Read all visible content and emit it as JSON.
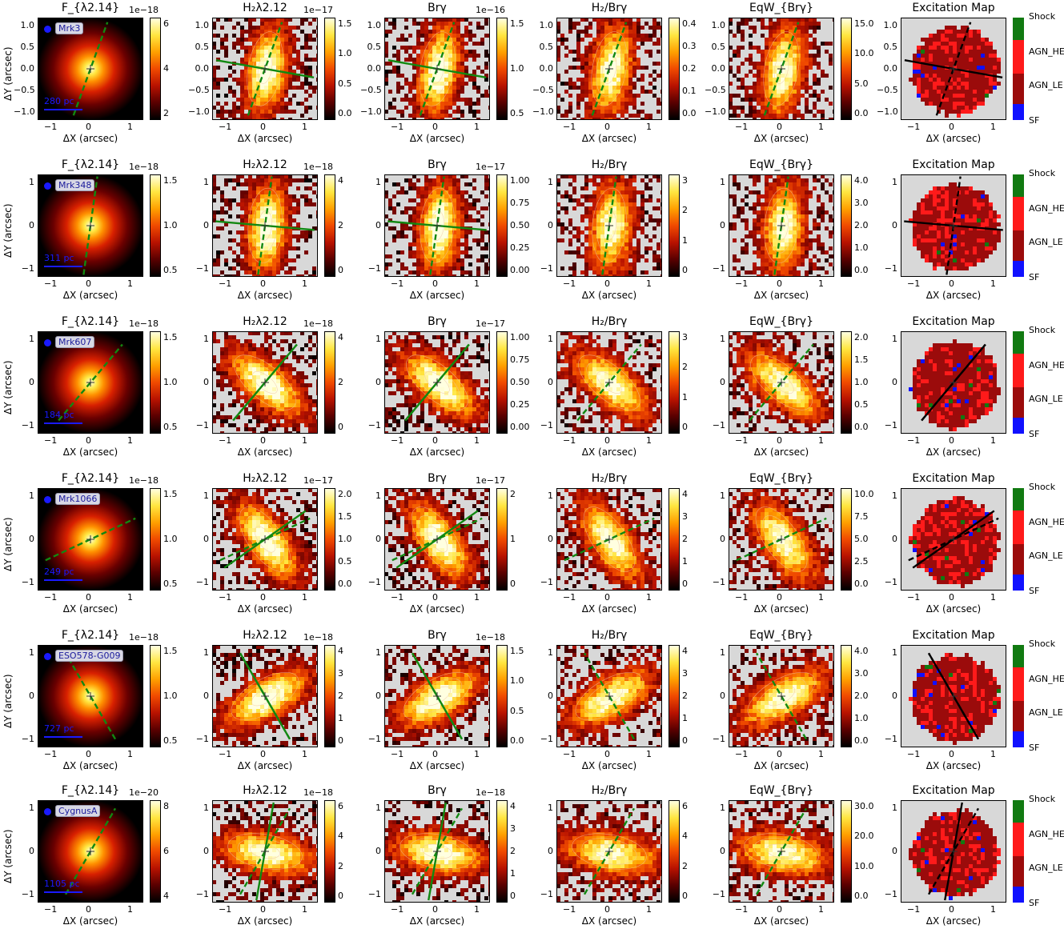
{
  "column_titles": [
    "F_{λ2.14}",
    "H₂λ2.12",
    "Brγ",
    "H₂/Brγ",
    "EqW_{Brγ}",
    "Excitation Map"
  ],
  "axis": {
    "xlabel": "ΔX (arcsec)",
    "ylabel": "ΔY (arcsec)"
  },
  "excitation_categories": [
    {
      "label": "Shock",
      "color": "#117a11"
    },
    {
      "label": "AGN_HE",
      "color": "#ff1a1a"
    },
    {
      "label": "AGN_LE",
      "color": "#9b0b0b"
    },
    {
      "label": "SF",
      "color": "#1010ff"
    }
  ],
  "colormap": [
    "#000000",
    "#5a0000",
    "#b81200",
    "#f04a00",
    "#ffa000",
    "#ffe640",
    "#ffffe0"
  ],
  "masked_color": "#d8d8d8",
  "rows": [
    {
      "galaxy": "Mrk3",
      "scale_text": "280 pc",
      "xticks": [
        "−1",
        "0",
        "1"
      ],
      "yticks": [
        "1.0",
        "0.5",
        "0.0",
        "−0.5",
        "−1.0"
      ],
      "multipliers": [
        "1e−18",
        "1e−17",
        "1e−16",
        "",
        "",
        ""
      ],
      "colorbars": [
        [
          "6",
          "4",
          "2"
        ],
        [
          "1.5",
          "1.0",
          "0.5",
          "0.0"
        ],
        [
          "1.5",
          "1.0",
          "0.5"
        ],
        [
          "0.4",
          "0.3",
          "0.2",
          "0.1",
          "0.0"
        ],
        [
          "15.0",
          "10.0",
          "5.0",
          "0.0"
        ]
      ],
      "pa_deg": 20,
      "pa2_deg": 100
    },
    {
      "galaxy": "Mrk348",
      "scale_text": "311 pc",
      "xticks": [
        "−1",
        "0",
        "1"
      ],
      "yticks": [
        "1",
        "0",
        "−1"
      ],
      "multipliers": [
        "1e−18",
        "1e−18",
        "1e−17",
        "",
        "",
        ""
      ],
      "colorbars": [
        [
          "1.5",
          "1.0",
          "0.5"
        ],
        [
          "4",
          "2",
          "0"
        ],
        [
          "1.00",
          "0.75",
          "0.50",
          "0.25",
          "0.00"
        ],
        [
          "3",
          "2",
          "1",
          "0"
        ],
        [
          "4.0",
          "3.0",
          "2.0",
          "1.0",
          "0.0"
        ]
      ],
      "pa_deg": 8,
      "pa2_deg": 95
    },
    {
      "galaxy": "Mrk607",
      "scale_text": "184 pc",
      "xticks": [
        "−1",
        "0",
        "1"
      ],
      "yticks": [
        "1",
        "0",
        "−1"
      ],
      "multipliers": [
        "1e−18",
        "1e−18",
        "1e−17",
        "",
        "",
        ""
      ],
      "colorbars": [
        [
          "1.5",
          "1.0",
          "0.5"
        ],
        [
          "4",
          "2",
          "0"
        ],
        [
          "1.00",
          "0.75",
          "0.50",
          "0.25",
          "0.00"
        ],
        [
          "3",
          "2",
          "1",
          "0"
        ],
        [
          "2.0",
          "1.5",
          "1.0",
          "0.5",
          "0.0"
        ]
      ],
      "pa_deg": 40,
      "pa2_deg": 40
    },
    {
      "galaxy": "Mrk1066",
      "scale_text": "249 pc",
      "xticks": [
        "−1",
        "0",
        "1"
      ],
      "yticks": [
        "1",
        "0",
        "−1"
      ],
      "multipliers": [
        "1e−18",
        "1e−17",
        "1e−17",
        "",
        "",
        ""
      ],
      "colorbars": [
        [
          "1.5",
          "1.0",
          "0.5"
        ],
        [
          "2.0",
          "1.5",
          "1.0",
          "0.5",
          "0.0"
        ],
        [
          "2",
          "1",
          "0"
        ],
        [
          "4",
          "3",
          "2",
          "1",
          "0"
        ],
        [
          "10.0",
          "7.5",
          "5.0",
          "2.5",
          "0.0"
        ]
      ],
      "pa_deg": 65,
      "pa2_deg": 55
    },
    {
      "galaxy": "ESO578-G009",
      "scale_text": "727 pc",
      "xticks": [
        "−1",
        "0",
        "1"
      ],
      "yticks": [
        "1",
        "0",
        "−1"
      ],
      "multipliers": [
        "1e−18",
        "1e−18",
        "1e−18",
        "",
        "",
        ""
      ],
      "colorbars": [
        [
          "1.5",
          "1.0",
          "0.5"
        ],
        [
          "4",
          "3",
          "2",
          "1",
          "0"
        ],
        [
          "1.5",
          "1.0",
          "0.5",
          "0.0"
        ],
        [
          "4",
          "3",
          "2",
          "1",
          "0"
        ],
        [
          "4.0",
          "3.0",
          "2.0",
          "1.0",
          "0.0"
        ]
      ],
      "pa_deg": -30,
      "pa2_deg": -30
    },
    {
      "galaxy": "CygnusA",
      "scale_text": "1105 pc",
      "xticks": [
        "−1",
        "0",
        "1"
      ],
      "yticks": [
        "1",
        "0",
        "−1"
      ],
      "multipliers": [
        "1e−20",
        "1e−18",
        "1e−18",
        "",
        "",
        ""
      ],
      "colorbars": [
        [
          "8",
          "6",
          "4"
        ],
        [
          "6",
          "4",
          "2",
          "0"
        ],
        [
          "4",
          "3",
          "2",
          "1",
          "0"
        ],
        [
          "6",
          "4",
          "2",
          "0"
        ],
        [
          "30.0",
          "20.0",
          "10.0",
          "0.0"
        ]
      ],
      "pa_deg": 30,
      "pa2_deg": 10
    }
  ]
}
